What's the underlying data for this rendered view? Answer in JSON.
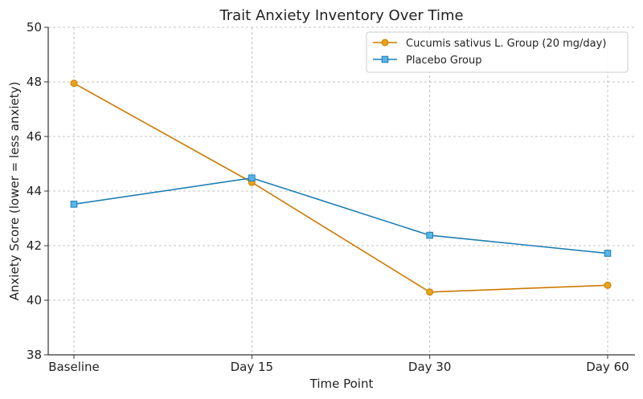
{
  "chart_data": {
    "type": "line",
    "title": "Trait Anxiety Inventory Over Time",
    "xlabel": "Time Point",
    "ylabel": "Anxiety Score (lower = less anxiety)",
    "categories": [
      "Baseline",
      "Day 15",
      "Day 30",
      "Day 60"
    ],
    "ylim": [
      38,
      50
    ],
    "yticks": [
      38,
      40,
      42,
      44,
      46,
      48,
      50
    ],
    "grid": true,
    "legend_position": "top-right",
    "series": [
      {
        "name": "Cucumis sativus L. Group (20 mg/day)",
        "values": [
          47.95,
          44.32,
          40.3,
          40.55
        ],
        "color": "#cc7a00",
        "fill": "#e8a317",
        "marker": "circle"
      },
      {
        "name": "Placebo Group",
        "values": [
          43.52,
          44.48,
          42.38,
          41.72
        ],
        "color": "#1f7fb4",
        "fill": "#56b4e9",
        "marker": "square"
      }
    ]
  }
}
